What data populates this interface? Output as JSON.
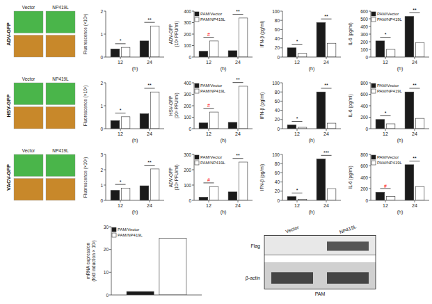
{
  "chart_data": [
    {
      "type": "image",
      "title": "ADV-GFP",
      "annotations": [
        {
          "text": "Vector"
        },
        {
          "text": "NP419L"
        }
      ],
      "colors": [
        "#4ab54a",
        "#c8882a"
      ]
    },
    {
      "type": "bar",
      "categories": [
        "12",
        "24"
      ],
      "series": [
        {
          "name": "PAM/Vector",
          "color": "#1a1a1a",
          "values": [
            0.35,
            0.7
          ]
        },
        {
          "name": "PAM/NP419L",
          "color": "#ffffff",
          "values": [
            0.42,
            1.35
          ]
        }
      ],
      "x_label": "(h)",
      "y_label": "Fluorescence (×10³)",
      "ylim": [
        0,
        2
      ],
      "yticks": [
        0,
        1,
        2
      ],
      "annotations": [
        {
          "text": "*",
          "category": "12"
        },
        {
          "text": "**",
          "category": "24"
        }
      ]
    },
    {
      "type": "bar",
      "categories": [
        "12",
        "24"
      ],
      "series": [
        {
          "name": "PAM/Vector",
          "color": "#1a1a1a",
          "values": [
            50,
            55
          ]
        },
        {
          "name": "PAM/NP419L",
          "color": "#ffffff",
          "values": [
            140,
            340
          ]
        }
      ],
      "x_label": "(h)",
      "y_label": "ADV-GFP\n(10³ PFU/ml)",
      "ylim": [
        0,
        400
      ],
      "yticks": [
        0,
        100,
        200,
        300,
        400
      ],
      "legend": "upper left",
      "annotations": [
        {
          "text": "#",
          "category": "12",
          "color": "red"
        },
        {
          "text": "**",
          "category": "24"
        }
      ]
    },
    {
      "type": "bar",
      "categories": [
        "12",
        "24"
      ],
      "series": [
        {
          "name": "PAM/Vector",
          "color": "#1a1a1a",
          "values": [
            20,
            75
          ]
        },
        {
          "name": "PAM/NP419L",
          "color": "#ffffff",
          "values": [
            8,
            30
          ]
        }
      ],
      "x_label": "(h)",
      "y_label": "IFN-β (pg/ml)",
      "ylim": [
        0,
        100
      ],
      "yticks": [
        0,
        20,
        40,
        60,
        80,
        100
      ],
      "annotations": [
        {
          "text": "*",
          "category": "12"
        },
        {
          "text": "**",
          "category": "24"
        }
      ]
    },
    {
      "type": "bar",
      "categories": [
        "12",
        "24"
      ],
      "series": [
        {
          "name": "PAM/Vector",
          "color": "#1a1a1a",
          "values": [
            210,
            530
          ]
        },
        {
          "name": "PAM/NP419L",
          "color": "#ffffff",
          "values": [
            100,
            185
          ]
        }
      ],
      "x_label": "(h)",
      "y_label": "IL-6 (pg/ml)",
      "ylim": [
        0,
        600
      ],
      "yticks": [
        0,
        100,
        200,
        300,
        400,
        500,
        600
      ],
      "legend": "upper left",
      "annotations": [
        {
          "text": "*",
          "category": "12"
        },
        {
          "text": "**",
          "category": "24"
        }
      ]
    },
    {
      "type": "image",
      "title": "HSV-GFP",
      "annotations": [
        {
          "text": "Vector"
        },
        {
          "text": "NP419L"
        }
      ],
      "colors": [
        "#4ab54a",
        "#c8882a"
      ]
    },
    {
      "type": "bar",
      "categories": [
        "12",
        "24"
      ],
      "series": [
        {
          "name": "PAM/Vector",
          "color": "#1a1a1a",
          "values": [
            0.35,
            0.65
          ]
        },
        {
          "name": "PAM/NP419L",
          "color": "#ffffff",
          "values": [
            0.52,
            1.6
          ]
        }
      ],
      "x_label": "(h)",
      "y_label": "Fluorescence (×10³)",
      "ylim": [
        0,
        2
      ],
      "yticks": [
        0,
        1,
        2
      ],
      "annotations": [
        {
          "text": "*",
          "category": "12"
        },
        {
          "text": "**",
          "category": "24"
        }
      ]
    },
    {
      "type": "bar",
      "categories": [
        "12",
        "24"
      ],
      "series": [
        {
          "name": "PAM/Vector",
          "color": "#1a1a1a",
          "values": [
            50,
            55
          ]
        },
        {
          "name": "PAM/NP419L",
          "color": "#ffffff",
          "values": [
            145,
            370
          ]
        }
      ],
      "x_label": "(h)",
      "y_label": "HSV-GFP\n(10³ PFU/ml)",
      "ylim": [
        0,
        400
      ],
      "yticks": [
        0,
        100,
        200,
        300,
        400
      ],
      "legend": "upper left",
      "annotations": [
        {
          "text": "#",
          "category": "12",
          "color": "red"
        },
        {
          "text": "**",
          "category": "24"
        }
      ]
    },
    {
      "type": "bar",
      "categories": [
        "12",
        "24"
      ],
      "series": [
        {
          "name": "PAM/Vector",
          "color": "#1a1a1a",
          "values": [
            8,
            80
          ]
        },
        {
          "name": "PAM/NP419L",
          "color": "#ffffff",
          "values": [
            3,
            12
          ]
        }
      ],
      "x_label": "(h)",
      "y_label": "IFN-β (pg/ml)",
      "ylim": [
        0,
        100
      ],
      "yticks": [
        0,
        20,
        40,
        60,
        80,
        100
      ],
      "annotations": [
        {
          "text": "*",
          "category": "12"
        },
        {
          "text": "**",
          "category": "24"
        }
      ]
    },
    {
      "type": "bar",
      "categories": [
        "12",
        "24"
      ],
      "series": [
        {
          "name": "PAM/Vector",
          "color": "#1a1a1a",
          "values": [
            160,
            640
          ]
        },
        {
          "name": "PAM/NP419L",
          "color": "#ffffff",
          "values": [
            85,
            180
          ]
        }
      ],
      "x_label": "(h)",
      "y_label": "IL-6 (pg/ml)",
      "ylim": [
        0,
        800
      ],
      "yticks": [
        0,
        200,
        400,
        600,
        800
      ],
      "legend": "upper left",
      "annotations": [
        {
          "text": "*",
          "category": "12"
        },
        {
          "text": "**",
          "category": "24"
        }
      ]
    },
    {
      "type": "image",
      "title": "VACV-GFP",
      "annotations": [
        {
          "text": "Vector"
        },
        {
          "text": "NP419L"
        }
      ],
      "colors": [
        "#4ab54a",
        "#c8882a"
      ]
    },
    {
      "type": "bar",
      "categories": [
        "12",
        "24"
      ],
      "series": [
        {
          "name": "PAM/Vector",
          "color": "#1a1a1a",
          "values": [
            0.65,
            0.95
          ]
        },
        {
          "name": "PAM/NP419L",
          "color": "#ffffff",
          "values": [
            0.8,
            2.05
          ]
        }
      ],
      "x_label": "(h)",
      "y_label": "Fluorescence (×10³)",
      "ylim": [
        0,
        3
      ],
      "yticks": [
        0,
        1,
        2,
        3
      ],
      "annotations": [
        {
          "text": "*",
          "category": "12"
        },
        {
          "text": "**",
          "category": "24"
        }
      ]
    },
    {
      "type": "bar",
      "categories": [
        "12",
        "24"
      ],
      "series": [
        {
          "name": "PAM/Vector",
          "color": "#1a1a1a",
          "values": [
            20,
            55
          ]
        },
        {
          "name": "PAM/NP419L",
          "color": "#ffffff",
          "values": [
            90,
            250
          ]
        }
      ],
      "x_label": "(h)",
      "y_label": "ADV-GFP\n(10³ PFU/ml)",
      "ylim": [
        0,
        300
      ],
      "yticks": [
        0,
        100,
        200,
        300
      ],
      "legend": "upper left",
      "annotations": [
        {
          "text": "#",
          "category": "12",
          "color": "red"
        },
        {
          "text": "**",
          "category": "24"
        }
      ]
    },
    {
      "type": "bar",
      "categories": [
        "12",
        "24"
      ],
      "series": [
        {
          "name": "PAM/Vector",
          "color": "#1a1a1a",
          "values": [
            8,
            90
          ]
        },
        {
          "name": "PAM/NP419L",
          "color": "#ffffff",
          "values": [
            2,
            25
          ]
        }
      ],
      "x_label": "(h)",
      "y_label": "IFN-β (pg/ml)",
      "ylim": [
        0,
        100
      ],
      "yticks": [
        0,
        20,
        40,
        60,
        80,
        100
      ],
      "annotations": [
        {
          "text": "*",
          "category": "12"
        },
        {
          "text": "***",
          "category": "24"
        }
      ]
    },
    {
      "type": "bar",
      "categories": [
        "12",
        "24"
      ],
      "series": [
        {
          "name": "PAM/Vector",
          "color": "#1a1a1a",
          "values": [
            140,
            620
          ]
        },
        {
          "name": "PAM/NP419L",
          "color": "#ffffff",
          "values": [
            65,
            240
          ]
        }
      ],
      "x_label": "(h)",
      "y_label": "IL-6 (pg/ml)",
      "ylim": [
        0,
        800
      ],
      "yticks": [
        0,
        200,
        400,
        600,
        800
      ],
      "legend": "upper left",
      "annotations": [
        {
          "text": "#",
          "category": "12",
          "color": "red"
        },
        {
          "text": "**",
          "category": "24"
        }
      ]
    },
    {
      "type": "bar",
      "categories": [
        null
      ],
      "series": [
        {
          "name": "PAM/Vector",
          "color": "#1a1a1a",
          "values": [
            1.5
          ]
        },
        {
          "name": "PAM/NP419L",
          "color": "#ffffff",
          "values": [
            25
          ]
        }
      ],
      "y_label": "mRNA expression\n(fold induction × 10²)",
      "ylim": [
        0,
        30
      ],
      "yticks": [
        0,
        10,
        20,
        30
      ],
      "legend": "upper left",
      "tick_labels": "y"
    },
    {
      "type": "image",
      "annotations": [
        {
          "text": "Flag"
        },
        {
          "text": "β-actin"
        },
        {
          "text": "Vector"
        },
        {
          "text": "NP419L"
        },
        {
          "text": "PAM"
        }
      ]
    }
  ]
}
